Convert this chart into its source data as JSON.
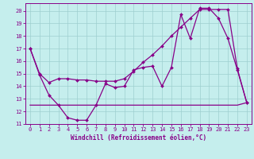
{
  "xlabel": "Windchill (Refroidissement éolien,°C)",
  "bg_color": "#c5eeed",
  "line_color": "#880088",
  "xlim": [
    -0.5,
    23.5
  ],
  "ylim": [
    11,
    20.6
  ],
  "yticks": [
    11,
    12,
    13,
    14,
    15,
    16,
    17,
    18,
    19,
    20
  ],
  "xticks": [
    0,
    1,
    2,
    3,
    4,
    5,
    6,
    7,
    8,
    9,
    10,
    11,
    12,
    13,
    14,
    15,
    16,
    17,
    18,
    19,
    20,
    21,
    22,
    23
  ],
  "series1_x": [
    0,
    1,
    2,
    3,
    4,
    5,
    6,
    7,
    8,
    9,
    10,
    11,
    12,
    13,
    14,
    15,
    16,
    17,
    18,
    19,
    20,
    21,
    22,
    23
  ],
  "series1_y": [
    17.0,
    14.9,
    13.3,
    12.5,
    11.5,
    11.3,
    11.3,
    12.5,
    14.2,
    13.9,
    14.0,
    15.3,
    15.5,
    15.6,
    14.0,
    15.5,
    19.7,
    17.8,
    20.2,
    20.2,
    19.4,
    17.8,
    15.3,
    12.7
  ],
  "series2_x": [
    0,
    1,
    2,
    3,
    4,
    5,
    6,
    7,
    8,
    9,
    10,
    11,
    12,
    13,
    14,
    15,
    16,
    17,
    18,
    19,
    20,
    21,
    22,
    23
  ],
  "series2_y": [
    17.0,
    15.0,
    14.3,
    14.6,
    14.6,
    14.5,
    14.5,
    14.4,
    14.4,
    14.4,
    14.6,
    15.2,
    15.9,
    16.5,
    17.2,
    18.0,
    18.7,
    19.4,
    20.1,
    20.1,
    20.1,
    20.1,
    15.4,
    12.7
  ],
  "series3_x": [
    0,
    3,
    4,
    5,
    6,
    7,
    8,
    9,
    10,
    11,
    12,
    13,
    14,
    15,
    16,
    17,
    18,
    19,
    20,
    21,
    22,
    23
  ],
  "series3_y": [
    12.5,
    12.5,
    12.5,
    12.5,
    12.5,
    12.5,
    12.5,
    12.5,
    12.5,
    12.5,
    12.5,
    12.5,
    12.5,
    12.5,
    12.5,
    12.5,
    12.5,
    12.5,
    12.5,
    12.5,
    12.5,
    12.7
  ]
}
